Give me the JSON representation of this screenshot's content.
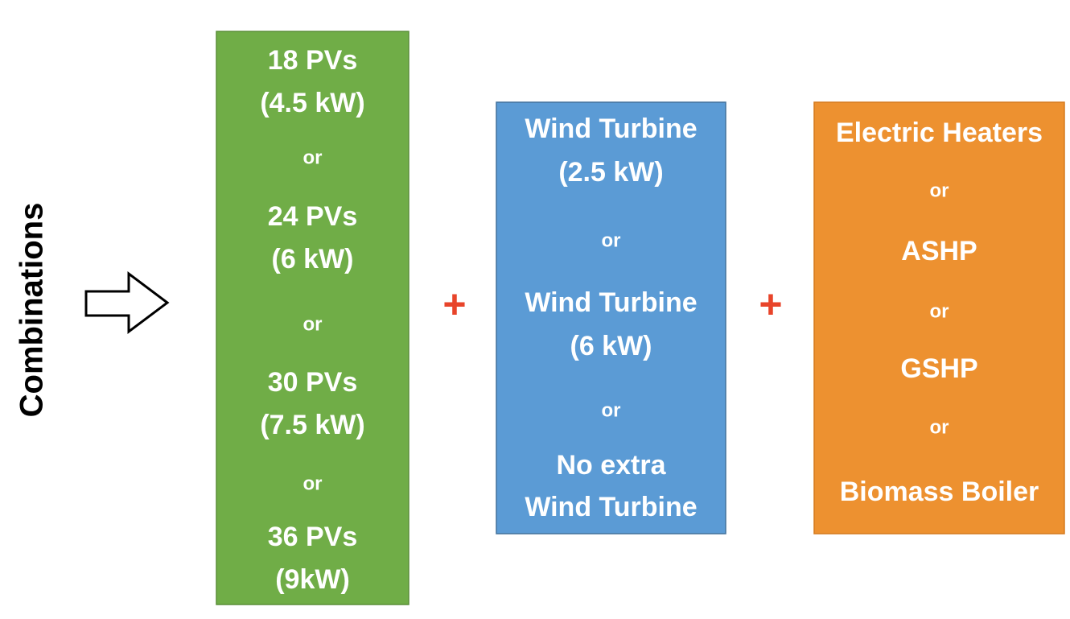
{
  "side_label": "Combinations",
  "operators": [
    "+",
    "+"
  ],
  "boxes": [
    {
      "items": [
        [
          "18 PVs",
          "(4.5 kW)"
        ],
        [
          "or"
        ],
        [
          "24 PVs",
          "(6 kW)"
        ],
        [
          "or"
        ],
        [
          "30 PVs",
          "(7.5 kW)"
        ],
        [
          "or"
        ],
        [
          "36 PVs",
          "(9kW)"
        ]
      ]
    },
    {
      "items": [
        [
          "Wind Turbine",
          "(2.5 kW)"
        ],
        [
          "or"
        ],
        [
          "Wind Turbine",
          "(6 kW)"
        ],
        [
          "or"
        ],
        [
          "No extra",
          "Wind Turbine"
        ]
      ]
    },
    {
      "items": [
        [
          "Electric Heaters"
        ],
        [
          "or"
        ],
        [
          "ASHP"
        ],
        [
          "or"
        ],
        [
          "GSHP"
        ],
        [
          "or"
        ],
        [
          "Biomass Boiler"
        ]
      ]
    }
  ]
}
